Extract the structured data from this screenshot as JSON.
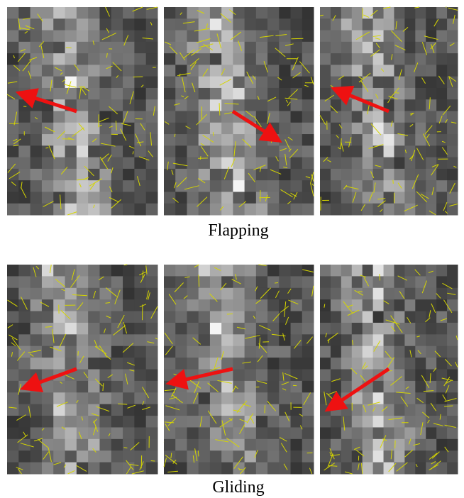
{
  "figure": {
    "rows": [
      {
        "caption": "Flapping"
      },
      {
        "caption": "Gliding"
      }
    ]
  }
}
